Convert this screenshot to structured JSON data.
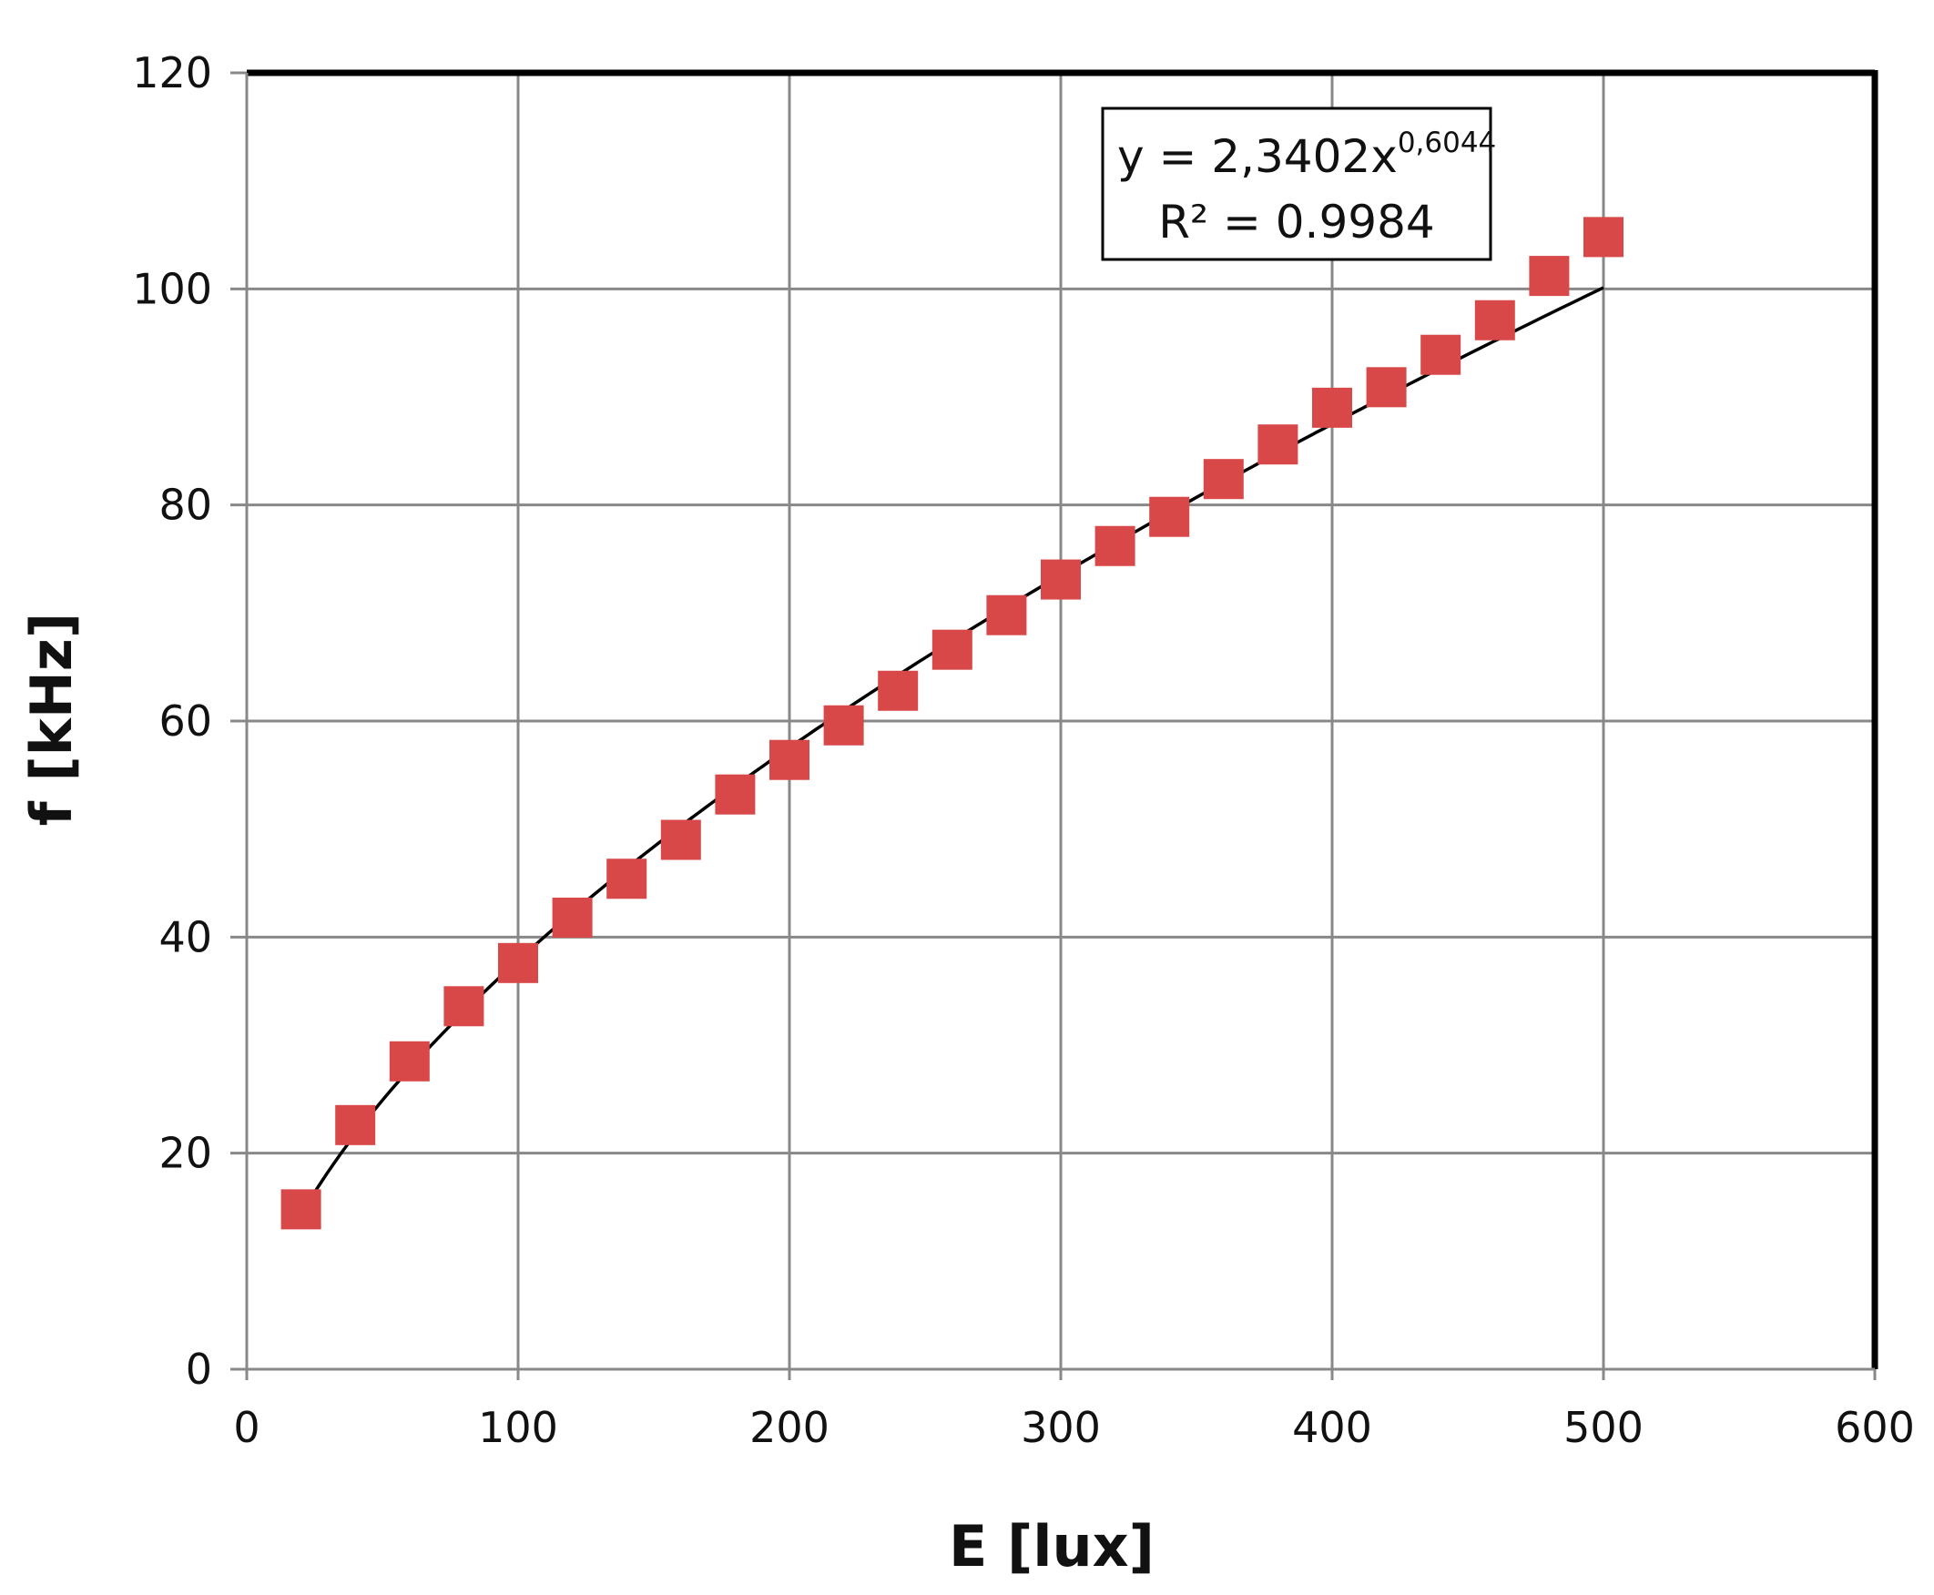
{
  "chart_data": {
    "type": "scatter",
    "xlabel": "E [lux]",
    "ylabel": "f [kHz]",
    "xlim": [
      0,
      600
    ],
    "ylim": [
      0,
      120
    ],
    "x_ticks": [
      "0",
      "100",
      "200",
      "300",
      "400",
      "500",
      "600"
    ],
    "y_ticks": [
      "0",
      "20",
      "40",
      "60",
      "80",
      "100",
      "120"
    ],
    "grid": true,
    "series": [
      {
        "marker": "square",
        "color": "#d94848",
        "x": [
          20,
          40,
          60,
          80,
          100,
          120,
          140,
          160,
          180,
          200,
          220,
          240,
          260,
          280,
          300,
          320,
          340,
          360,
          380,
          400,
          420,
          440,
          460,
          480,
          500
        ],
        "y": [
          14.8,
          22.6,
          28.5,
          33.6,
          37.6,
          41.8,
          45.4,
          49.0,
          53.2,
          56.4,
          59.6,
          62.8,
          66.6,
          69.8,
          73.1,
          76.2,
          78.9,
          82.4,
          85.6,
          89.0,
          90.9,
          93.9,
          97.1,
          101.2,
          104.8
        ]
      }
    ],
    "trendline": {
      "type": "power",
      "coefficient": 2.3402,
      "exponent": 0.6044,
      "x_range": [
        20,
        500
      ],
      "color": "#000000"
    },
    "annotation": {
      "equation_prefix": "y = 2,3402x",
      "equation_exponent": "0,6044",
      "r_squared": "R² = 0.9984"
    }
  }
}
